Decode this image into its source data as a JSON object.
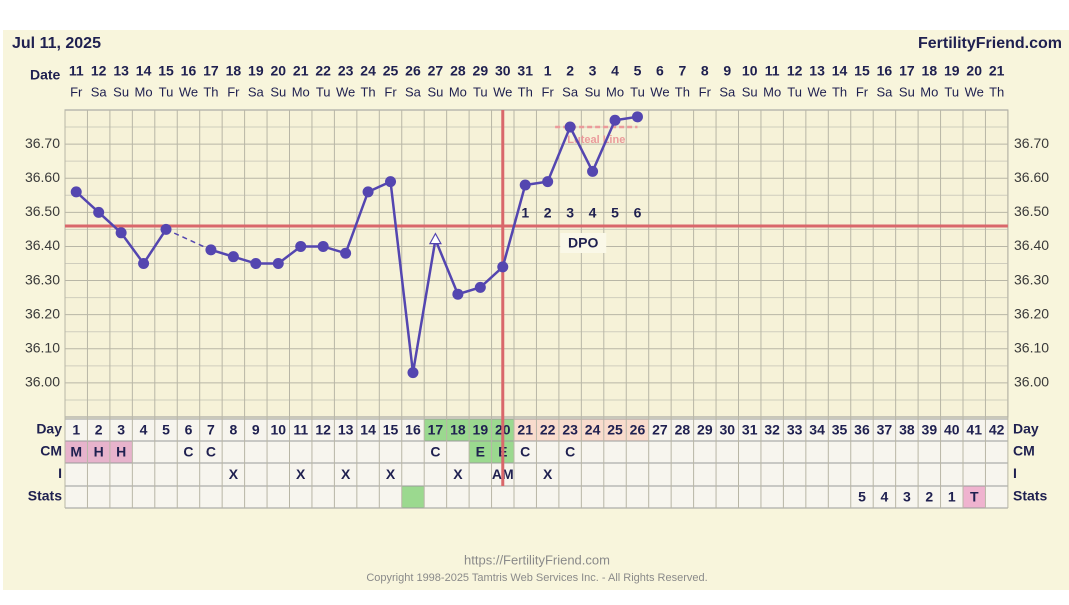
{
  "chart_data": {
    "type": "line",
    "header_date": "Jul 11, 2025",
    "site": "FertilityFriend.com",
    "date_label": "Date",
    "categories": [
      "11",
      "12",
      "13",
      "14",
      "15",
      "16",
      "17",
      "18",
      "19",
      "20",
      "21",
      "22",
      "23",
      "24",
      "25",
      "26",
      "27",
      "28",
      "29",
      "30",
      "31",
      "1",
      "2",
      "3",
      "4",
      "5",
      "6",
      "7",
      "8",
      "9",
      "10",
      "11",
      "12",
      "13",
      "14",
      "15",
      "16",
      "17",
      "18",
      "19",
      "20",
      "21"
    ],
    "weekdays": [
      "Fr",
      "Sa",
      "Su",
      "Mo",
      "Tu",
      "We",
      "Th",
      "Fr",
      "Sa",
      "Su",
      "Mo",
      "Tu",
      "We",
      "Th",
      "Fr",
      "Sa",
      "Su",
      "Mo",
      "Tu",
      "We",
      "Th",
      "Fr",
      "Sa",
      "Su",
      "Mo",
      "Tu",
      "We",
      "Th",
      "Fr",
      "Sa",
      "Su",
      "Mo",
      "Tu",
      "We",
      "Th",
      "Fr",
      "Sa",
      "Su",
      "Mo",
      "Tu",
      "We",
      "Th"
    ],
    "series": [
      {
        "name": "Temperature",
        "color": "#5446b0",
        "values": [
          36.56,
          36.5,
          36.44,
          36.35,
          36.45,
          null,
          36.39,
          36.37,
          36.35,
          36.35,
          36.4,
          36.4,
          36.38,
          36.56,
          36.59,
          36.03,
          36.42,
          36.26,
          36.28,
          36.34,
          36.58,
          36.59,
          36.75,
          36.62,
          36.77,
          36.78,
          null,
          null,
          null,
          null,
          null,
          null,
          null,
          null,
          null,
          null,
          null,
          null,
          null,
          null,
          null,
          null
        ]
      }
    ],
    "open_marker_index": 16,
    "ylim": [
      35.9,
      36.8
    ],
    "yticks": [
      {
        "value": 36.0,
        "label": "36.00"
      },
      {
        "value": 36.1,
        "label": "36.10"
      },
      {
        "value": 36.2,
        "label": "36.20"
      },
      {
        "value": 36.3,
        "label": "36.30"
      },
      {
        "value": 36.4,
        "label": "36.40"
      },
      {
        "value": 36.5,
        "label": "36.50"
      },
      {
        "value": 36.6,
        "label": "36.60"
      },
      {
        "value": 36.7,
        "label": "36.70"
      }
    ],
    "grid": true,
    "coverline": 36.46,
    "coverline_color": "#d9676b",
    "ovulation_index": 19,
    "luteal_line": {
      "label": "Luteal Line",
      "value": 36.75,
      "color": "#eb9b9b"
    },
    "dpo": [
      null,
      null,
      null,
      null,
      null,
      null,
      null,
      null,
      null,
      null,
      null,
      null,
      null,
      null,
      null,
      null,
      null,
      null,
      null,
      null,
      1,
      2,
      3,
      4,
      5,
      6,
      null,
      null,
      null,
      null,
      null,
      null,
      null,
      null,
      null,
      null,
      null,
      null,
      null,
      null,
      null,
      null
    ],
    "dpo_label": "DPO",
    "row_labels": [
      "Day",
      "CM",
      "I",
      "Stats"
    ],
    "cycle_days": [
      1,
      2,
      3,
      4,
      5,
      6,
      7,
      8,
      9,
      10,
      11,
      12,
      13,
      14,
      15,
      16,
      17,
      18,
      19,
      20,
      21,
      22,
      23,
      24,
      25,
      26,
      27,
      28,
      29,
      30,
      31,
      32,
      33,
      34,
      35,
      36,
      37,
      38,
      39,
      40,
      41,
      42
    ],
    "day_colors": [
      null,
      null,
      null,
      null,
      null,
      null,
      null,
      null,
      null,
      null,
      null,
      null,
      null,
      null,
      null,
      null,
      "#9bd98f",
      "#9bd98f",
      "#9bd98f",
      "#9bd98f",
      "#f9dccd",
      "#f9dccd",
      "#f9dccd",
      "#f9dccd",
      "#f9dccd",
      "#f9dccd",
      null,
      null,
      null,
      null,
      null,
      null,
      null,
      null,
      null,
      null,
      null,
      null,
      null,
      null,
      null,
      null
    ],
    "cm": [
      "M",
      "H",
      "H",
      null,
      null,
      "C",
      "C",
      null,
      null,
      null,
      null,
      null,
      null,
      null,
      null,
      null,
      "C",
      null,
      "E",
      "E",
      "C",
      null,
      "C",
      null,
      null,
      null,
      null,
      null,
      null,
      null,
      null,
      null,
      null,
      null,
      null,
      null,
      null,
      null,
      null,
      null,
      null,
      null
    ],
    "cm_colors": [
      "#e7b3cc",
      "#e7b3cc",
      "#e7b3cc",
      null,
      null,
      null,
      null,
      null,
      null,
      null,
      null,
      null,
      null,
      null,
      null,
      null,
      null,
      null,
      "#9bd98f",
      "#9bd98f",
      null,
      null,
      null,
      null,
      null,
      null,
      null,
      null,
      null,
      null,
      null,
      null,
      null,
      null,
      null,
      null,
      null,
      null,
      null,
      null,
      null,
      null
    ],
    "intercourse": [
      null,
      null,
      null,
      null,
      null,
      null,
      null,
      "X",
      null,
      null,
      "X",
      null,
      "X",
      null,
      "X",
      null,
      null,
      "X",
      null,
      "AM",
      null,
      "X",
      null,
      null,
      null,
      null,
      null,
      null,
      null,
      null,
      null,
      null,
      null,
      null,
      null,
      null,
      null,
      null,
      null,
      null,
      null,
      null
    ],
    "stats": [
      null,
      null,
      null,
      null,
      null,
      null,
      null,
      null,
      null,
      null,
      null,
      null,
      null,
      null,
      null,
      null,
      null,
      null,
      null,
      null,
      null,
      null,
      null,
      null,
      null,
      null,
      null,
      null,
      null,
      null,
      null,
      null,
      null,
      null,
      null,
      5,
      4,
      3,
      2,
      1,
      "T",
      null
    ],
    "stats_colors": [
      null,
      null,
      null,
      null,
      null,
      null,
      null,
      null,
      null,
      null,
      null,
      null,
      null,
      null,
      null,
      "#9bd98f",
      null,
      null,
      null,
      null,
      null,
      null,
      null,
      null,
      null,
      null,
      null,
      null,
      null,
      null,
      null,
      null,
      null,
      null,
      null,
      null,
      null,
      null,
      null,
      null,
      "#efb3cf",
      null
    ],
    "footer_url": "https://FertilityFriend.com",
    "copyright": "Copyright 1998-2025 Tamtris Web Services Inc. - All Rights Reserved."
  }
}
